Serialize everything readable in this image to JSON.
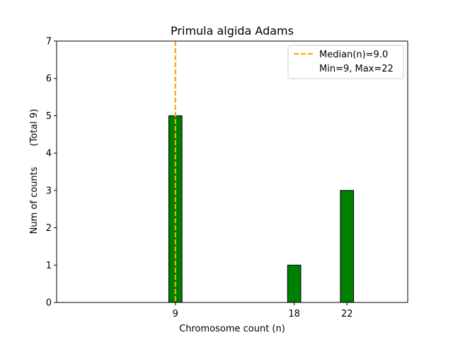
{
  "chart_data": {
    "type": "bar",
    "title": "Primula algida Adams",
    "xlabel": "Chromosome count (n)",
    "ylabel": "Num of counts       (Total 9)",
    "categories": [
      9,
      18,
      22
    ],
    "values": [
      5,
      1,
      3
    ],
    "xlim": [
      0,
      26.6
    ],
    "ylim": [
      0,
      7
    ],
    "yticks": [
      0,
      1,
      2,
      3,
      4,
      5,
      6,
      7
    ],
    "xticks": [
      9,
      18,
      22
    ],
    "bar_width": 1,
    "bar_color": "#008000",
    "bar_edge_color": "#000000",
    "median_line": {
      "x": 9,
      "color": "#ffa500",
      "style": "dashed"
    },
    "legend": {
      "placement": "top-right",
      "entries": [
        {
          "label": "Median(n)=9.0",
          "marker": "dashed-line",
          "color": "#ffa500"
        },
        {
          "label": "Min=9, Max=22",
          "marker": "none"
        }
      ]
    },
    "grid": false
  }
}
